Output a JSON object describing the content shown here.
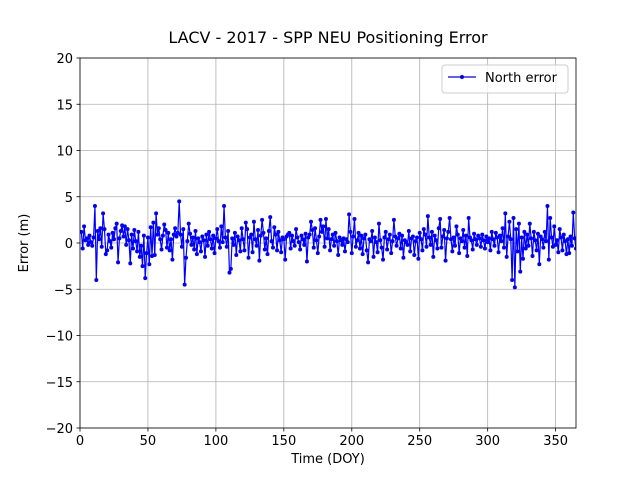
{
  "chart_data": {
    "type": "line",
    "title": "LACV - 2017 - SPP NEU Positioning Error",
    "xlabel": "Time (DOY)",
    "ylabel": "Error (m)",
    "xlim": [
      0,
      365
    ],
    "ylim": [
      -20,
      20
    ],
    "xticks": [
      0,
      50,
      100,
      150,
      200,
      250,
      300,
      350
    ],
    "yticks": [
      {
        "value": -20,
        "label": "−20"
      },
      {
        "value": -15,
        "label": "−15"
      },
      {
        "value": -10,
        "label": "−10"
      },
      {
        "value": -5,
        "label": "−5"
      },
      0,
      5,
      10,
      15,
      20
    ],
    "grid": true,
    "legend": "upper right",
    "x": [
      1,
      2,
      3,
      4,
      5,
      6,
      7,
      8,
      9,
      10,
      11,
      12,
      13,
      14,
      15,
      16,
      17,
      18,
      19,
      20,
      21,
      22,
      23,
      24,
      25,
      26,
      27,
      28,
      29,
      30,
      31,
      32,
      33,
      34,
      35,
      36,
      37,
      38,
      39,
      40,
      41,
      42,
      43,
      44,
      45,
      46,
      47,
      48,
      49,
      50,
      51,
      52,
      53,
      54,
      55,
      56,
      57,
      58,
      59,
      60,
      61,
      62,
      63,
      64,
      65,
      66,
      67,
      68,
      69,
      70,
      71,
      72,
      73,
      74,
      75,
      76,
      77,
      78,
      79,
      80,
      81,
      82,
      83,
      84,
      85,
      86,
      87,
      88,
      89,
      90,
      91,
      92,
      93,
      94,
      95,
      96,
      97,
      98,
      99,
      100,
      101,
      102,
      103,
      104,
      105,
      106,
      107,
      108,
      109,
      110,
      111,
      112,
      113,
      114,
      115,
      116,
      117,
      118,
      119,
      120,
      121,
      122,
      123,
      124,
      125,
      126,
      127,
      128,
      129,
      130,
      131,
      132,
      133,
      134,
      135,
      136,
      137,
      138,
      139,
      140,
      141,
      142,
      143,
      144,
      145,
      146,
      147,
      148,
      149,
      150,
      151,
      152,
      153,
      154,
      155,
      156,
      157,
      158,
      159,
      160,
      161,
      162,
      163,
      164,
      165,
      166,
      167,
      168,
      169,
      170,
      171,
      172,
      173,
      174,
      175,
      176,
      177,
      178,
      179,
      180,
      181,
      182,
      183,
      184,
      185,
      186,
      187,
      188,
      189,
      190,
      191,
      192,
      193,
      194,
      195,
      196,
      197,
      198,
      199,
      200,
      201,
      202,
      203,
      204,
      205,
      206,
      207,
      208,
      209,
      210,
      211,
      212,
      213,
      214,
      215,
      216,
      217,
      218,
      219,
      220,
      221,
      222,
      223,
      224,
      225,
      226,
      227,
      228,
      229,
      230,
      231,
      232,
      233,
      234,
      235,
      236,
      237,
      238,
      239,
      240,
      241,
      242,
      243,
      244,
      245,
      246,
      247,
      248,
      249,
      250,
      251,
      252,
      253,
      254,
      255,
      256,
      257,
      258,
      259,
      260,
      261,
      262,
      263,
      264,
      265,
      266,
      267,
      268,
      269,
      270,
      271,
      272,
      273,
      274,
      275,
      276,
      277,
      278,
      279,
      280,
      281,
      282,
      283,
      284,
      285,
      286,
      287,
      288,
      289,
      290,
      291,
      292,
      293,
      294,
      295,
      296,
      297,
      298,
      299,
      300,
      301,
      302,
      303,
      304,
      305,
      306,
      307,
      308,
      309,
      310,
      311,
      312,
      313,
      314,
      315,
      316,
      317,
      318,
      319,
      320,
      321,
      322,
      323,
      324,
      325,
      326,
      327,
      328,
      329,
      330,
      331,
      332,
      333,
      334,
      335,
      336,
      337,
      338,
      339,
      340,
      341,
      342,
      343,
      344,
      345,
      346,
      347,
      348,
      349,
      350,
      351,
      352,
      353,
      354,
      355,
      356,
      357,
      358,
      359,
      360,
      361,
      362,
      363,
      364,
      365
    ],
    "series": [
      {
        "name": "North error",
        "color": "#0000ff",
        "values": [
          1.2,
          -0.6,
          1.8,
          0.3,
          0.5,
          -0.2,
          0.8,
          0.1,
          -0.3,
          0.6,
          4.0,
          -4.0,
          1.3,
          0.4,
          1.6,
          -0.4,
          3.2,
          1.5,
          -1.2,
          -0.8,
          0.9,
          0.2,
          -0.5,
          1.1,
          0.4,
          1.6,
          2.1,
          -2.1,
          0.5,
          1.3,
          1.9,
          0.7,
          1.8,
          -0.2,
          1.5,
          0.3,
          -2.2,
          0.9,
          -0.6,
          1.4,
          0.2,
          -0.9,
          1.2,
          -1.5,
          -0.3,
          -2.5,
          0.8,
          -3.8,
          -1.1,
          0.6,
          -2.3,
          1.7,
          -1.4,
          2.2,
          -1.3,
          3.2,
          0.9,
          1.6,
          0.4,
          -0.7,
          0.8,
          2.0,
          1.4,
          -0.5,
          1.1,
          -0.8,
          0.4,
          -1.8,
          0.9,
          1.6,
          0.7,
          1.1,
          4.5,
          0.9,
          -0.4,
          1.5,
          -4.5,
          -1.6,
          0.2,
          2.1,
          1.0,
          -0.2,
          0.6,
          -0.7,
          1.3,
          -1.2,
          0.5,
          0.1,
          -0.9,
          0.7,
          0.3,
          -1.5,
          0.9,
          -0.3,
          1.2,
          0.4,
          -0.6,
          0.8,
          -1.1,
          0.5,
          1.5,
          0.2,
          -0.5,
          1.8,
          0.1,
          4.0,
          0.6,
          -0.4,
          1.3,
          -3.2,
          -2.8,
          0.5,
          -0.2,
          1.1,
          -1.3,
          0.7,
          0.3,
          -0.9,
          1.6,
          0.4,
          -0.8,
          2.2,
          1.5,
          -1.6,
          0.6,
          0.9,
          -1.0,
          2.3,
          0.4,
          -0.3,
          1.4,
          -1.9,
          0.8,
          2.5,
          1.1,
          -0.7,
          0.5,
          -1.2,
          1.3,
          2.8,
          0.2,
          -0.5,
          1.7,
          0.9,
          -0.8,
          1.2,
          0.3,
          -1.0,
          0.6,
          0.4,
          -1.8,
          0.7,
          0.9,
          1.1,
          -0.6,
          0.8,
          0.2,
          -0.3,
          1.5,
          0.6,
          0.1,
          -0.7,
          0.8,
          0.4,
          -0.2,
          1.0,
          -2.0,
          0.6,
          0.9,
          2.3,
          1.4,
          -0.5,
          1.6,
          0.3,
          -1.1,
          0.7,
          2.5,
          1.2,
          1.8,
          -0.4,
          2.6,
          0.5,
          1.5,
          -0.8,
          0.4,
          0.9,
          -0.3,
          1.1,
          0.2,
          -1.3,
          0.6,
          0.3,
          -0.2,
          0.5,
          -0.9,
          0.4,
          0.1,
          3.1,
          1.2,
          -1.1,
          0.7,
          2.6,
          -0.4,
          0.3,
          1.1,
          -0.6,
          0.8,
          -1.2,
          0.5,
          0.9,
          -0.8,
          -2.1,
          0.4,
          0.2,
          1.3,
          -1.5,
          0.6,
          0.1,
          -1.0,
          2.1,
          0.3,
          -0.5,
          -1.8,
          0.6,
          1.2,
          -0.7,
          0.4,
          0.9,
          -1.1,
          0.2,
          2.5,
          0.7,
          -0.3,
          0.5,
          1.0,
          -0.6,
          0.8,
          -1.6,
          0.3,
          0.1,
          -0.2,
          1.3,
          -0.9,
          0.5,
          0.7,
          -1.3,
          0.2,
          0.6,
          -1.7,
          1.1,
          0.4,
          -0.8,
          1.5,
          0.9,
          -0.4,
          2.9,
          0.6,
          -0.2,
          1.2,
          -1.5,
          0.8,
          0.3,
          -0.6,
          1.6,
          2.6,
          -0.5,
          0.7,
          1.4,
          -1.9,
          0.5,
          1.2,
          2.7,
          0.4,
          -0.9,
          0.6,
          -0.3,
          1.8,
          0.9,
          -1.1,
          0.5,
          0.2,
          1.4,
          -0.5,
          0.8,
          -1.4,
          2.7,
          0.6,
          0.3,
          -0.7,
          1.0,
          0.4,
          -0.2,
          0.8,
          0.5,
          -0.4,
          0.9,
          0.3,
          -0.6,
          0.7,
          0.1,
          0.5,
          -0.8,
          1.2,
          0.4,
          -0.3,
          1.1,
          0.6,
          -1.0,
          0.8,
          0.2,
          1.6,
          -0.5,
          3.2,
          -1.5,
          0.7,
          2.3,
          0.4,
          -4.0,
          2.7,
          -4.8,
          1.5,
          -0.9,
          2.1,
          -3.1,
          0.6,
          -1.7,
          1.2,
          -0.6,
          0.9,
          -0.3,
          2.1,
          0.5,
          -1.4,
          1.2,
          0.3,
          -0.8,
          1.0,
          -2.3,
          0.7,
          0.4,
          -0.5,
          1.2,
          0.2,
          4.0,
          -1.8,
          2.7,
          0.6,
          -0.4,
          1.8,
          -0.2,
          0.3,
          -1.0,
          1.5,
          0.6,
          -0.8,
          0.9,
          0.2,
          -1.2,
          0.4,
          -1.1,
          0.7,
          -0.3,
          3.3,
          0.5,
          -0.6
        ]
      }
    ]
  }
}
